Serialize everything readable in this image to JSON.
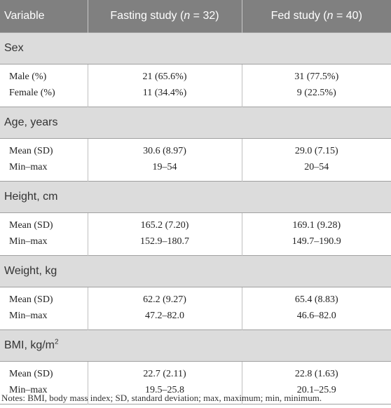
{
  "header": {
    "variable": "Variable",
    "fasting_prefix": "Fasting study (",
    "fasting_n": "n",
    "fasting_suffix": " = 32)",
    "fed_prefix": "Fed study (",
    "fed_n": "n",
    "fed_suffix": " = 40)"
  },
  "sections": [
    {
      "title": "Sex",
      "rows": [
        {
          "label": "Male (%)",
          "fasting": "21 (65.6%)",
          "fed": "31 (77.5%)"
        },
        {
          "label": "Female (%)",
          "fasting": "11 (34.4%)",
          "fed": "9 (22.5%)"
        }
      ]
    },
    {
      "title": "Age, years",
      "rows": [
        {
          "label": "Mean (SD)",
          "fasting": "30.6 (8.97)",
          "fed": "29.0 (7.15)"
        },
        {
          "label": "Min–max",
          "fasting": "19–54",
          "fed": "20–54"
        }
      ]
    },
    {
      "title": "Height, cm",
      "rows": [
        {
          "label": "Mean (SD)",
          "fasting": "165.2 (7.20)",
          "fed": "169.1 (9.28)"
        },
        {
          "label": "Min–max",
          "fasting": "152.9–180.7",
          "fed": "149.7–190.9"
        }
      ]
    },
    {
      "title": "Weight, kg",
      "rows": [
        {
          "label": "Mean (SD)",
          "fasting": "62.2 (9.27)",
          "fed": "65.4 (8.83)"
        },
        {
          "label": "Min–max",
          "fasting": "47.2–82.0",
          "fed": "46.6–82.0"
        }
      ]
    },
    {
      "title": "BMI, kg/m",
      "title_sup": "2",
      "rows": [
        {
          "label": "Mean (SD)",
          "fasting": "22.7 (2.11)",
          "fed": "22.8 (1.63)"
        },
        {
          "label": "Min–max",
          "fasting": "19.5–25.8",
          "fed": "20.1–25.9"
        }
      ]
    }
  ],
  "notes": "Notes: BMI, body mass index; SD, standard deviation; max, maximum; min, minimum."
}
